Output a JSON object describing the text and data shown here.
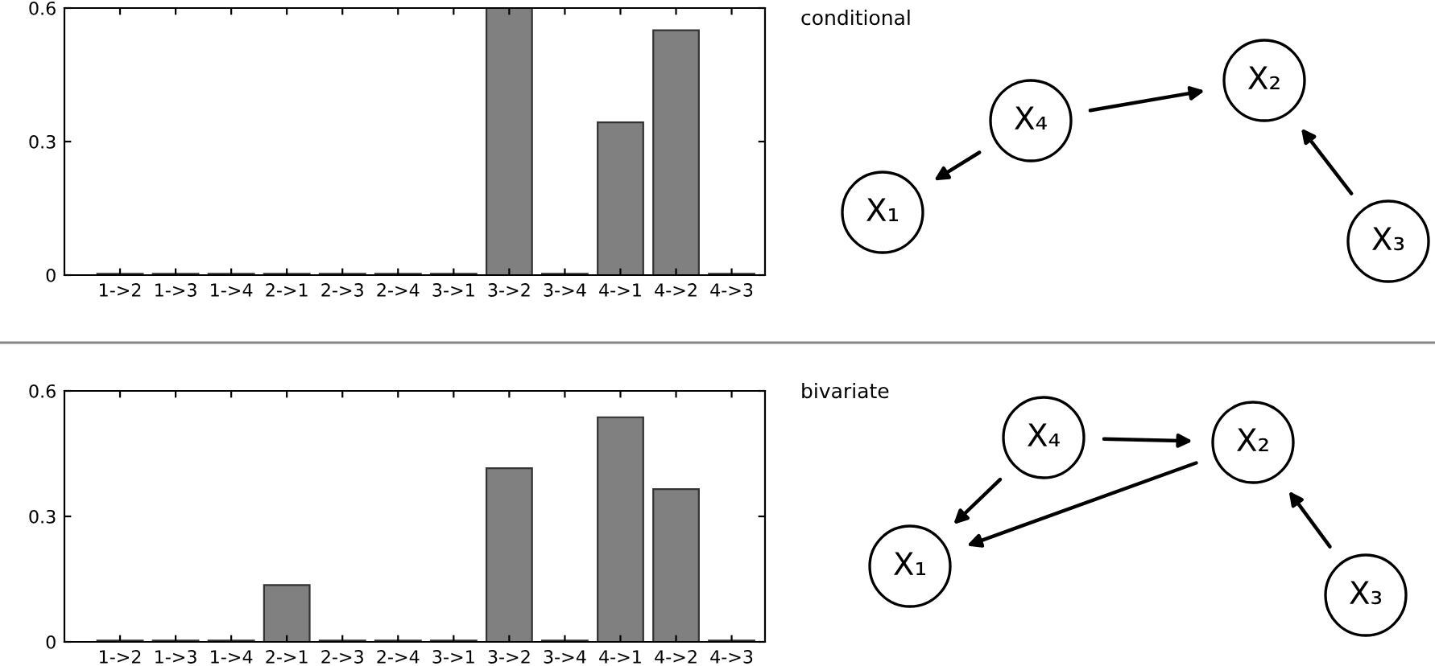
{
  "chart_data": [
    {
      "type": "bar",
      "categories": [
        "1->2",
        "1->3",
        "1->4",
        "2->1",
        "2->3",
        "2->4",
        "3->1",
        "3->2",
        "3->4",
        "4->1",
        "4->2",
        "4->3"
      ],
      "values": [
        0.003,
        0.003,
        0.003,
        0.003,
        0.003,
        0.003,
        0.003,
        0.6,
        0.003,
        0.343,
        0.55,
        0.003
      ],
      "color": "#808080",
      "ylim": [
        0,
        0.6
      ],
      "yticks": [
        0,
        0.3,
        0.6
      ],
      "grid": false
    },
    {
      "type": "other",
      "title": "conditional",
      "annotations": [
        "X₄",
        "X₂",
        "X₁",
        "X₃"
      ]
    },
    {
      "type": "bar",
      "categories": [
        "1->2",
        "1->3",
        "1->4",
        "2->1",
        "2->3",
        "2->4",
        "3->1",
        "3->2",
        "3->4",
        "4->1",
        "4->2",
        "4->3"
      ],
      "values": [
        0.003,
        0.003,
        0.003,
        0.136,
        0.003,
        0.003,
        0.003,
        0.415,
        0.003,
        0.537,
        0.365,
        0.003
      ],
      "color": "#808080",
      "ylim": [
        0,
        0.6
      ],
      "yticks": [
        0,
        0.3,
        0.6
      ],
      "grid": false
    },
    {
      "type": "other",
      "title": "bivariate",
      "annotations": [
        "X₄",
        "X₂",
        "X₁",
        "X₃"
      ]
    }
  ]
}
